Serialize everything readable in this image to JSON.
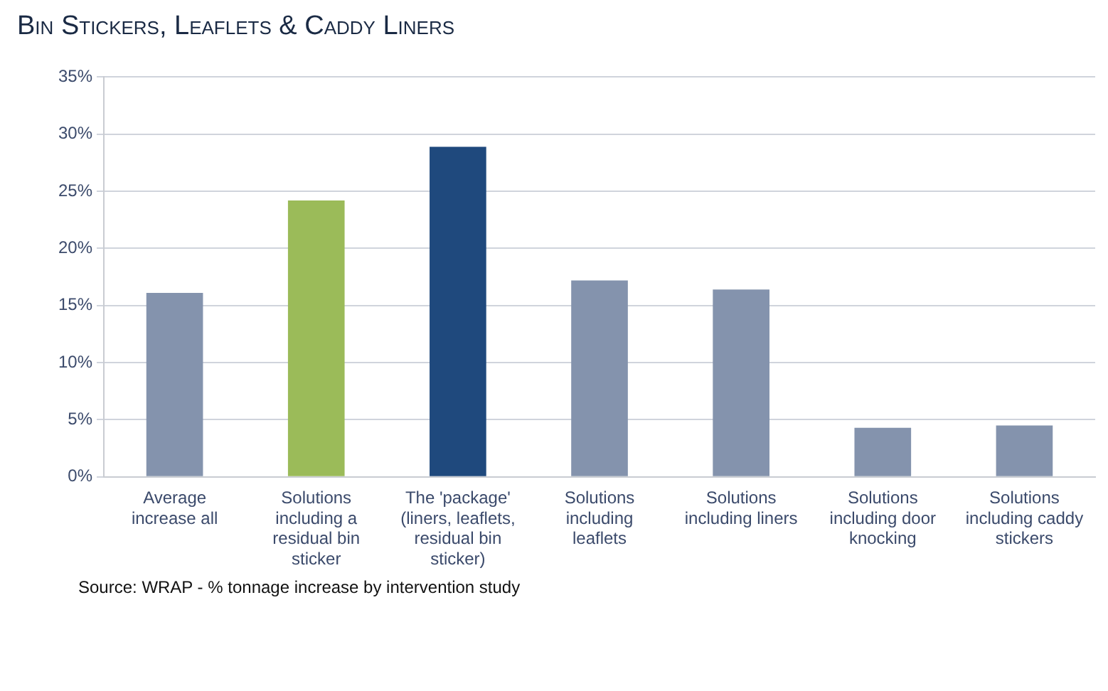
{
  "chart_data": {
    "type": "bar",
    "title": "Bin Stickers, Leaflets & Caddy Liners",
    "categories": [
      "Average increase all",
      "Solutions including a residual bin sticker",
      "The 'package' (liners, leaflets, residual bin sticker)",
      "Solutions including leaflets",
      "Solutions including liners",
      "Solutions including door knocking",
      "Solutions including caddy stickers"
    ],
    "values": [
      16.1,
      24.2,
      28.9,
      17.2,
      16.4,
      4.3,
      4.5
    ],
    "colors": [
      "#8493ad",
      "#9bbb59",
      "#1f497d",
      "#8493ad",
      "#8493ad",
      "#8493ad",
      "#8493ad"
    ],
    "ylim": [
      0,
      35
    ],
    "yticks": [
      {
        "value": 0,
        "label": "0%"
      },
      {
        "value": 5,
        "label": "5%"
      },
      {
        "value": 10,
        "label": "10%"
      },
      {
        "value": 15,
        "label": "15%"
      },
      {
        "value": 20,
        "label": "20%"
      },
      {
        "value": 25,
        "label": "25%"
      },
      {
        "value": 30,
        "label": "30%"
      },
      {
        "value": 35,
        "label": "35%"
      }
    ],
    "grid": "y",
    "legend": false,
    "annotations": [
      "Source: WRAP - % tonnage increase by intervention study"
    ]
  }
}
